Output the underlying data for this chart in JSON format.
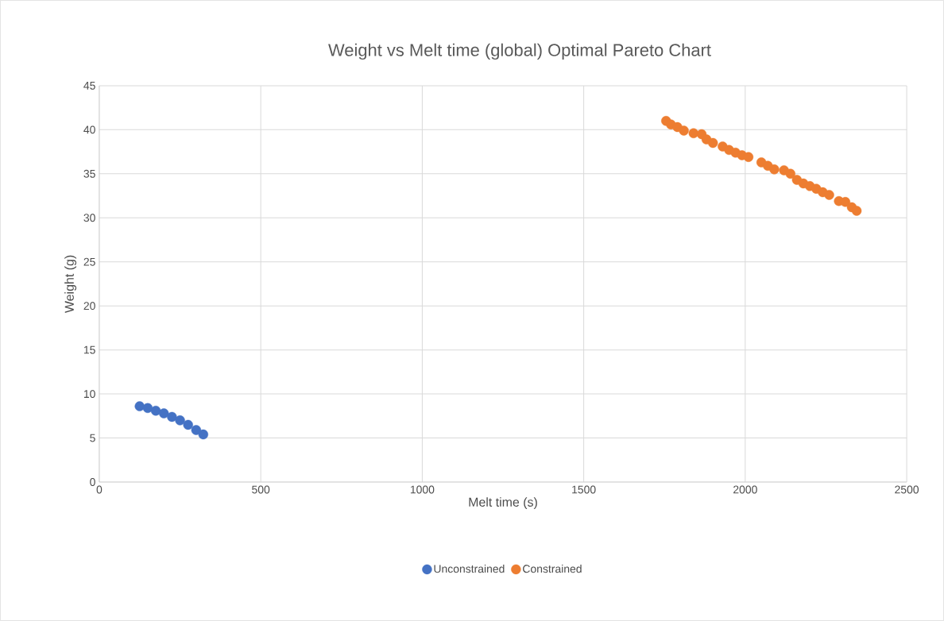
{
  "chart_data": {
    "type": "scatter",
    "title": "Weight vs Melt time (global) Optimal Pareto Chart",
    "xlabel": "Melt time (s)",
    "ylabel": "Weight (g)",
    "xlim": [
      0,
      2500
    ],
    "xticks": [
      0,
      500,
      1000,
      1500,
      2000,
      2500
    ],
    "ylim": [
      0,
      45
    ],
    "yticks": [
      0,
      5,
      10,
      15,
      20,
      25,
      30,
      35,
      40,
      45
    ],
    "grid": true,
    "legend": "bottom",
    "marker": "circle",
    "series": [
      {
        "name": "Unconstrained",
        "color": "#4472c4",
        "x": [
          125,
          150,
          175,
          200,
          225,
          250,
          275,
          300,
          322
        ],
        "values": [
          8.6,
          8.4,
          8.1,
          7.8,
          7.4,
          7.0,
          6.5,
          5.9,
          5.4
        ]
      },
      {
        "name": "Constrained",
        "color": "#ed7d31",
        "x": [
          1755,
          1770,
          1790,
          1810,
          1840,
          1865,
          1880,
          1900,
          1930,
          1950,
          1970,
          1990,
          2010,
          2050,
          2070,
          2090,
          2120,
          2140,
          2160,
          2180,
          2200,
          2220,
          2240,
          2260,
          2290,
          2310,
          2330,
          2345
        ],
        "values": [
          41.0,
          40.6,
          40.3,
          39.9,
          39.6,
          39.5,
          38.9,
          38.5,
          38.1,
          37.7,
          37.4,
          37.1,
          36.9,
          36.3,
          35.9,
          35.5,
          35.4,
          35.0,
          34.3,
          33.9,
          33.6,
          33.3,
          32.9,
          32.6,
          31.9,
          31.8,
          31.2,
          30.8
        ]
      }
    ]
  }
}
